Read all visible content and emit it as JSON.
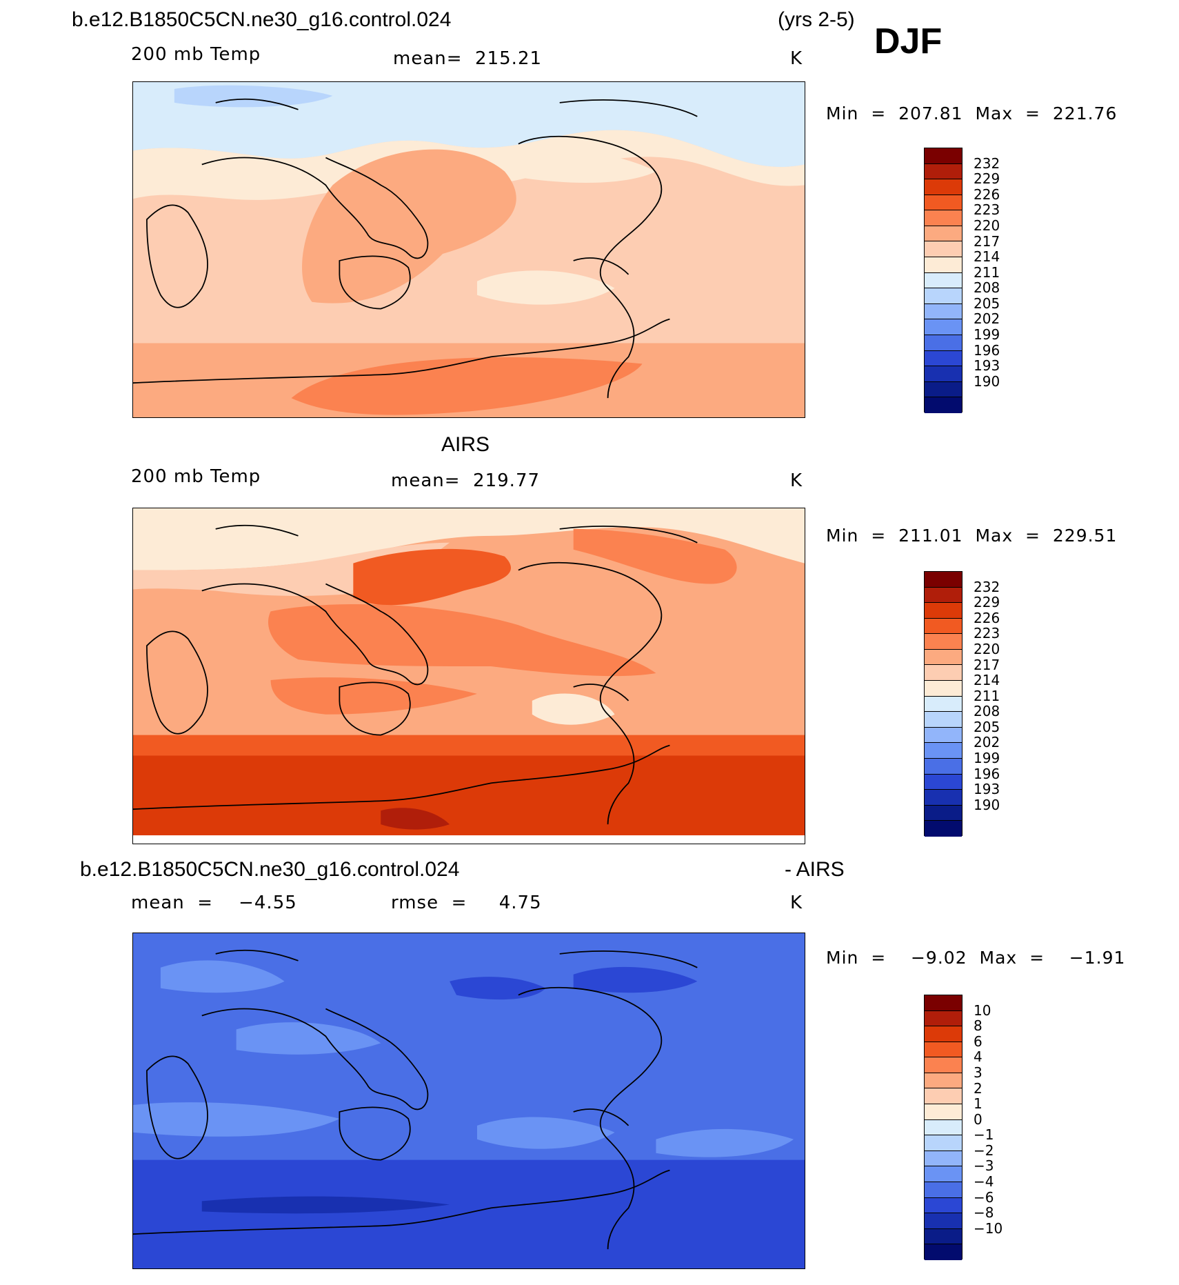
{
  "header": {
    "case": "b.e12.B1850C5CN.ne30_g16.control.024",
    "years": "(yrs 2-5)",
    "season": "DJF"
  },
  "panels": [
    {
      "id": "model",
      "title": "",
      "variable": "200 mb Temp",
      "stat_left": "mean=  215.21",
      "stat_mid": "",
      "units": "K",
      "minmax": "Min  =  207.81  Max  =  221.76"
    },
    {
      "id": "obs",
      "title": "AIRS",
      "variable": "200 mb Temp",
      "stat_left": "mean=  219.77",
      "stat_mid": "",
      "units": "K",
      "minmax": "Min  =  211.01  Max  =  229.51"
    },
    {
      "id": "diff",
      "title_left": "b.e12.B1850C5CN.ne30_g16.control.024",
      "title_right": "- AIRS",
      "stat_left": "mean  =    −4.55",
      "stat_mid": "rmse  =     4.75",
      "units": "K",
      "minmax": "Min  =    −9.02  Max  =    −1.91"
    }
  ],
  "chart_data": [
    {
      "type": "heatmap",
      "title": "200 mb Temp",
      "units": "K",
      "mean": 215.21,
      "min": 207.81,
      "max": 221.76,
      "colorbar_levels": [
        "232",
        "229",
        "226",
        "223",
        "220",
        "217",
        "214",
        "211",
        "208",
        "205",
        "202",
        "199",
        "196",
        "193",
        "190"
      ]
    },
    {
      "type": "heatmap",
      "title": "AIRS 200 mb Temp",
      "units": "K",
      "mean": 219.77,
      "min": 211.01,
      "max": 229.51,
      "colorbar_levels": [
        "232",
        "229",
        "226",
        "223",
        "220",
        "217",
        "214",
        "211",
        "208",
        "205",
        "202",
        "199",
        "196",
        "193",
        "190"
      ]
    },
    {
      "type": "heatmap",
      "title": "b.e12.B1850C5CN.ne30_g16.control.024 - AIRS",
      "units": "K",
      "mean": -4.55,
      "rmse": 4.75,
      "min": -9.02,
      "max": -1.91,
      "colorbar_levels": [
        "10",
        "8",
        "6",
        "4",
        "3",
        "2",
        "1",
        "0",
        "−1",
        "−2",
        "−3",
        "−4",
        "−6",
        "−8",
        "−10"
      ]
    }
  ],
  "palette": [
    "#7a0000",
    "#b01e0a",
    "#dc3a08",
    "#f15a22",
    "#fb8250",
    "#fcaa80",
    "#fdcdb2",
    "#fdebd6",
    "#d8ecfb",
    "#b8d5fc",
    "#92b5fa",
    "#6a93f4",
    "#4a6fe6",
    "#2b47d4",
    "#1830b0",
    "#0a1c88",
    "#020b6e"
  ]
}
